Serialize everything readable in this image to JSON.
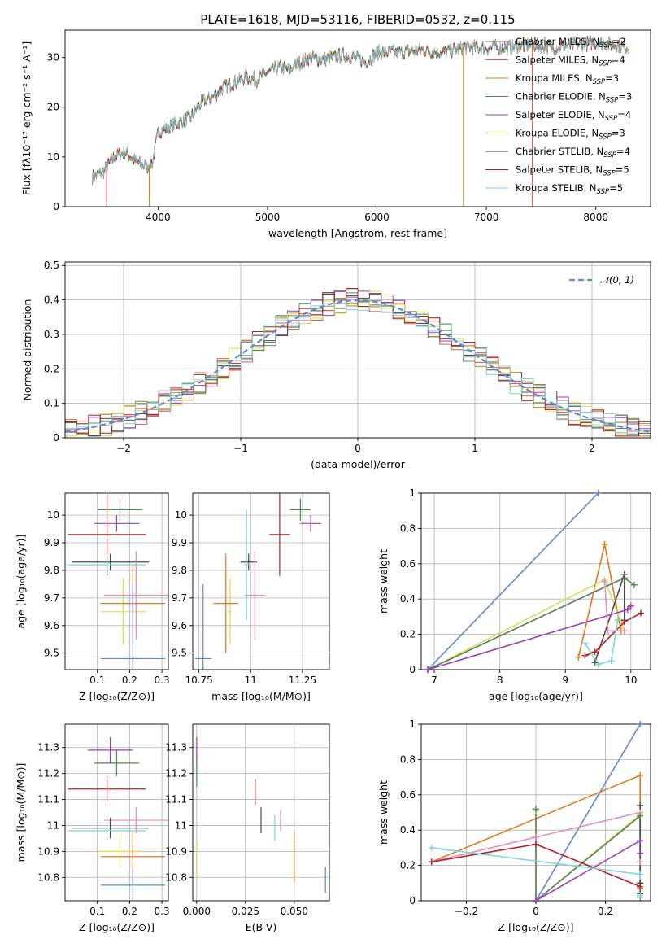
{
  "figure_title": "PLATE=1618, MJD=53116, FIBERID=0532, z=0.115",
  "colors": {
    "Chabrier MILES": "#7f7f7f",
    "Salpeter MILES": "#e45a4a",
    "Kroupa MILES": "#c28a1e",
    "Chabrier ELODIE": "#4e8a55",
    "Salpeter ELODIE": "#9b3fb5",
    "Kroupa ELODIE": "#d8e04a",
    "Chabrier STELIB": "#4a4a4a",
    "Salpeter STELIB": "#b0242a",
    "Kroupa STELIB": "#7fd6d8",
    "blue": "#5f88d0",
    "orange": "#e07a20",
    "pink": "#e58cc0",
    "lightgreen": "#c6e85a",
    "darkgreen": "#5f7a60"
  },
  "chart_data": [
    {
      "type": "line",
      "name": "spectrum",
      "xlabel": "wavelength [Angstrom, rest frame]",
      "ylabel": "Flux [fλ10⁻¹⁷ erg cm⁻² s⁻¹ A⁻¹]",
      "xlim": [
        3150,
        8500
      ],
      "ylim": [
        0,
        35.5
      ],
      "xticks": [
        4000,
        5000,
        6000,
        7000,
        8000
      ],
      "yticks": [
        0,
        10,
        20,
        30
      ],
      "grid": false,
      "legend_position": "right",
      "legend": [
        {
          "label": "Chabrier MILES, N",
          "sub": "SSP",
          "eq": "=2"
        },
        {
          "label": "Salpeter MILES, N",
          "sub": "SSP",
          "eq": "=4"
        },
        {
          "label": "Kroupa MILES, N",
          "sub": "SSP",
          "eq": "=3"
        },
        {
          "label": "Chabrier ELODIE, N",
          "sub": "SSP",
          "eq": "=3"
        },
        {
          "label": "Salpeter ELODIE, N",
          "sub": "SSP",
          "eq": "=4"
        },
        {
          "label": "Kroupa ELODIE, N",
          "sub": "SSP",
          "eq": "=3"
        },
        {
          "label": "Chabrier STELIB, N",
          "sub": "SSP",
          "eq": "=4"
        },
        {
          "label": "Salpeter STELIB, N",
          "sub": "SSP",
          "eq": "=5"
        },
        {
          "label": "Kroupa STELIB, N",
          "sub": "SSP",
          "eq": "=5"
        }
      ],
      "series_shape": {
        "x": [
          3400,
          3500,
          3600,
          3700,
          3800,
          3900,
          3950,
          4000,
          4100,
          4200,
          4300,
          4400,
          4500,
          4600,
          4700,
          4800,
          4900,
          5000,
          5100,
          5200,
          5300,
          5400,
          5500,
          5600,
          5700,
          5800,
          5900,
          6000,
          6200,
          6400,
          6600,
          6800,
          7000,
          7200,
          7400,
          7600,
          7800,
          8000,
          8200,
          8300
        ],
        "y": [
          6,
          7,
          10,
          11,
          9,
          8,
          9,
          15,
          16,
          17,
          18,
          21,
          22,
          24,
          25,
          26,
          25.5,
          27,
          28,
          27.5,
          29,
          30,
          29.5,
          30,
          30.5,
          30,
          29,
          31,
          31,
          31.5,
          31,
          32,
          32,
          32,
          32.5,
          32,
          32.5,
          33,
          32.5,
          32
        ]
      },
      "dropouts": [
        {
          "x": 3530,
          "y": 0,
          "series": "Salpeter MILES"
        },
        {
          "x": 3920,
          "y": 0,
          "series": "Kroupa MILES"
        },
        {
          "x": 6790,
          "y": 0,
          "series": "Kroupa MILES"
        },
        {
          "x": 7420,
          "y": 0,
          "series": "Salpeter MILES"
        }
      ]
    },
    {
      "type": "line",
      "name": "residual histogram",
      "xlabel": "(data-model)/error",
      "ylabel": "Normed distribution",
      "xlim": [
        -2.5,
        2.5
      ],
      "ylim": [
        0,
        0.51
      ],
      "xticks": [
        -2,
        -1,
        0,
        1,
        2
      ],
      "yticks": [
        0.0,
        0.1,
        0.2,
        0.3,
        0.4,
        0.5
      ],
      "grid": true,
      "legend": [
        {
          "label": "𝒩(0, 1)"
        }
      ],
      "bins": [
        -2.5,
        -2.4,
        -2.3,
        -2.2,
        -2.1,
        -2.0,
        -1.9,
        -1.8,
        -1.7,
        -1.6,
        -1.5,
        -1.4,
        -1.3,
        -1.2,
        -1.1,
        -1.0,
        -0.9,
        -0.8,
        -0.7,
        -0.6,
        -0.5,
        -0.4,
        -0.3,
        -0.2,
        -0.1,
        0.0,
        0.1,
        0.2,
        0.3,
        0.4,
        0.5,
        0.6,
        0.7,
        0.8,
        0.9,
        1.0,
        1.1,
        1.2,
        1.3,
        1.4,
        1.5,
        1.6,
        1.7,
        1.8,
        1.9,
        2.0,
        2.1,
        2.2,
        2.3,
        2.4
      ],
      "gaussian": {
        "mu": 0,
        "sigma": 1
      }
    },
    {
      "type": "scatter",
      "name": "age vs Z",
      "xlabel": "Z [log₁₀(Z/Z⊙)]",
      "ylabel": "age  [log₁₀(age/yr)]",
      "xlim": [
        0.0,
        0.32
      ],
      "ylim": [
        9.44,
        10.08
      ],
      "xticks": [
        0.1,
        0.2,
        0.3
      ],
      "yticks": [
        9.5,
        9.6,
        9.7,
        9.8,
        9.9,
        10.0
      ],
      "grid": true,
      "points": [
        {
          "series": "Chabrier ELODIE",
          "x": 0.17,
          "y": 10.02,
          "xerr": 0.07,
          "yerr": 0.04
        },
        {
          "series": "Salpeter ELODIE",
          "x": 0.16,
          "y": 9.97,
          "xerr": 0.07,
          "yerr": 0.03
        },
        {
          "series": "Salpeter STELIB",
          "x": 0.13,
          "y": 9.93,
          "xerr": 0.12,
          "yerr": 0.15
        },
        {
          "series": "Chabrier STELIB",
          "x": 0.14,
          "y": 9.83,
          "xerr": 0.12,
          "yerr": 0.03
        },
        {
          "series": "Kroupa STELIB",
          "x": 0.13,
          "y": 9.82,
          "xerr": 0.12,
          "yerr": 0.03
        },
        {
          "series": "Kroupa ELODIE",
          "x": 0.18,
          "y": 9.65,
          "xerr": 0.07,
          "yerr": 0.12
        },
        {
          "series": "Pink",
          "x": 0.22,
          "y": 9.71,
          "xerr": 0.1,
          "yerr": 0.16
        },
        {
          "series": "Orange",
          "x": 0.21,
          "y": 9.68,
          "xerr": 0.1,
          "yerr": 0.13
        },
        {
          "series": "Blue",
          "x": 0.21,
          "y": 9.48,
          "xerr": 0.1,
          "yerr": 0.27
        }
      ]
    },
    {
      "type": "scatter",
      "name": "age vs mass",
      "xlabel": "mass [log₁₀(M/M⊙)]",
      "xlim": [
        10.72,
        11.38
      ],
      "ylim": [
        9.44,
        10.08
      ],
      "xticks": [
        10.75,
        11.0,
        11.25
      ],
      "yticks": [
        9.5,
        9.6,
        9.7,
        9.8,
        9.9,
        10.0
      ],
      "grid": true,
      "points": [
        {
          "series": "Chabrier ELODIE",
          "x": 11.24,
          "y": 10.02,
          "xerr": 0.05,
          "yerr": 0.04
        },
        {
          "series": "Salpeter ELODIE",
          "x": 11.29,
          "y": 9.97,
          "xerr": 0.05,
          "yerr": 0.03
        },
        {
          "series": "Salpeter STELIB",
          "x": 11.14,
          "y": 9.93,
          "xerr": 0.05,
          "yerr": 0.15
        },
        {
          "series": "Chabrier STELIB",
          "x": 10.99,
          "y": 9.83,
          "xerr": 0.04,
          "yerr": 0.03
        },
        {
          "series": "Kroupa STELIB",
          "x": 10.98,
          "y": 9.82,
          "xerr": 0.01,
          "yerr": 0.2
        },
        {
          "series": "Kroupa ELODIE",
          "x": 10.9,
          "y": 9.65,
          "xerr": 0.01,
          "yerr": 0.12
        },
        {
          "series": "Pink",
          "x": 11.02,
          "y": 9.71,
          "xerr": 0.05,
          "yerr": 0.16
        },
        {
          "series": "Orange",
          "x": 10.88,
          "y": 9.68,
          "xerr": 0.06,
          "yerr": 0.18
        },
        {
          "series": "Blue",
          "x": 10.77,
          "y": 9.48,
          "xerr": 0.04,
          "yerr": 0.27
        }
      ]
    },
    {
      "type": "line",
      "name": "mass weight vs age",
      "xlabel": "age  [log₁₀(age/yr)]",
      "ylabel": "mass weight",
      "xlim": [
        6.8,
        10.3
      ],
      "ylim": [
        0,
        1.0
      ],
      "xticks": [
        7,
        8,
        9,
        10
      ],
      "yticks": [
        0.0,
        0.2,
        0.4,
        0.6,
        0.8,
        1.0
      ],
      "grid": true,
      "series": [
        {
          "color": "blue",
          "x": [
            6.9,
            9.5
          ],
          "y": [
            0.0,
            1.0
          ]
        },
        {
          "color": "orange",
          "x": [
            9.2,
            9.6,
            9.85
          ],
          "y": [
            0.07,
            0.71,
            0.22
          ]
        },
        {
          "color": "lightgreen",
          "x": [
            6.9,
            9.6,
            9.9
          ],
          "y": [
            0.0,
            0.51,
            0.22
          ]
        },
        {
          "color": "darkgreen",
          "x": [
            6.9,
            9.9,
            10.05
          ],
          "y": [
            0.0,
            0.52,
            0.48
          ]
        },
        {
          "color": "Chabrier STELIB",
          "x": [
            9.45,
            9.9,
            9.9
          ],
          "y": [
            0.04,
            0.54,
            0.28
          ]
        },
        {
          "color": "Salpeter ELODIE",
          "x": [
            6.9,
            9.95,
            10.0
          ],
          "y": [
            0.0,
            0.34,
            0.36
          ]
        },
        {
          "color": "Salpeter STELIB",
          "x": [
            9.3,
            9.45,
            9.9,
            10.15
          ],
          "y": [
            0.08,
            0.1,
            0.27,
            0.32
          ]
        },
        {
          "color": "pink",
          "x": [
            9.6,
            9.65,
            9.9
          ],
          "y": [
            0.5,
            0.22,
            0.22
          ]
        },
        {
          "color": "Kroupa STELIB",
          "x": [
            9.3,
            9.5,
            9.7,
            9.8
          ],
          "y": [
            0.15,
            0.03,
            0.05,
            0.28
          ]
        }
      ]
    },
    {
      "type": "scatter",
      "name": "mass vs Z",
      "xlabel": "Z [log₁₀(Z/Z⊙)]",
      "ylabel": "mass [log₁₀(M/M⊙)]",
      "xlim": [
        0.0,
        0.32
      ],
      "ylim": [
        10.71,
        11.39
      ],
      "xticks": [
        0.1,
        0.2,
        0.3
      ],
      "yticks": [
        10.8,
        10.9,
        11.0,
        11.1,
        11.2,
        11.3
      ],
      "grid": true,
      "points": [
        {
          "series": "Salpeter ELODIE",
          "x": 0.14,
          "y": 11.29,
          "xerr": 0.07,
          "yerr": 0.05
        },
        {
          "series": "Chabrier ELODIE",
          "x": 0.16,
          "y": 11.24,
          "xerr": 0.07,
          "yerr": 0.05
        },
        {
          "series": "Salpeter STELIB",
          "x": 0.13,
          "y": 11.14,
          "xerr": 0.12,
          "yerr": 0.05
        },
        {
          "series": "Pink",
          "x": 0.22,
          "y": 11.02,
          "xerr": 0.1,
          "yerr": 0.05
        },
        {
          "series": "Chabrier STELIB",
          "x": 0.14,
          "y": 10.99,
          "xerr": 0.12,
          "yerr": 0.04
        },
        {
          "series": "Kroupa STELIB",
          "x": 0.13,
          "y": 10.98,
          "xerr": 0.12,
          "yerr": 0.03
        },
        {
          "series": "Kroupa ELODIE",
          "x": 0.17,
          "y": 10.9,
          "xerr": 0.07,
          "yerr": 0.06
        },
        {
          "series": "Orange",
          "x": 0.21,
          "y": 10.88,
          "xerr": 0.1,
          "yerr": 0.1
        },
        {
          "series": "Blue",
          "x": 0.21,
          "y": 10.77,
          "xerr": 0.1,
          "yerr": 0.06
        }
      ]
    },
    {
      "type": "scatter",
      "name": "mass vs E(B-V)",
      "xlabel": "E(B-V)",
      "xlim": [
        -0.002,
        0.068
      ],
      "ylim": [
        10.71,
        11.39
      ],
      "xticks": [
        0.0,
        0.025,
        0.05
      ],
      "xticklabels": [
        "0.000",
        "0.025",
        "0.050"
      ],
      "yticks": [
        10.8,
        10.9,
        11.0,
        11.1,
        11.2,
        11.3
      ],
      "grid": true,
      "points": [
        {
          "series": "Salpeter ELODIE",
          "x": 0.0,
          "y": 11.29,
          "yerr": 0.05
        },
        {
          "series": "Chabrier ELODIE",
          "x": 0.0,
          "y": 11.2,
          "yerr": 0.05
        },
        {
          "series": "Salpeter STELIB",
          "x": 0.03,
          "y": 11.13,
          "yerr": 0.05
        },
        {
          "series": "Chabrier STELIB",
          "x": 0.033,
          "y": 11.02,
          "yerr": 0.05
        },
        {
          "series": "Pink",
          "x": 0.043,
          "y": 11.02,
          "yerr": 0.04
        },
        {
          "series": "Kroupa STELIB",
          "x": 0.04,
          "y": 10.99,
          "yerr": 0.05
        },
        {
          "series": "Orange",
          "x": 0.05,
          "y": 10.88,
          "yerr": 0.1
        },
        {
          "series": "Kroupa ELODIE",
          "x": 0.0,
          "y": 10.87,
          "yerr": 0.07
        },
        {
          "series": "Blue",
          "x": 0.066,
          "y": 10.79,
          "yerr": 0.05
        }
      ]
    },
    {
      "type": "line",
      "name": "mass weight vs Z",
      "xlabel": "Z [log₁₀(Z/Z⊙)]",
      "ylabel": "mass weight",
      "xlim": [
        -0.33,
        0.33
      ],
      "ylim": [
        0,
        1.0
      ],
      "xticks": [
        -0.2,
        0.0,
        0.2
      ],
      "yticks": [
        0.0,
        0.2,
        0.4,
        0.6,
        0.8,
        1.0
      ],
      "grid": true,
      "series": [
        {
          "color": "blue",
          "x": [
            0.0,
            0.3
          ],
          "y": [
            0.0,
            1.0
          ]
        },
        {
          "color": "orange",
          "x": [
            -0.3,
            0.3,
            0.3
          ],
          "y": [
            0.22,
            0.71,
            0.07
          ]
        },
        {
          "color": "pink",
          "x": [
            -0.3,
            0.0,
            0.3,
            0.3
          ],
          "y": [
            0.22,
            0.36,
            0.5,
            0.22
          ]
        },
        {
          "color": "lightgreen",
          "x": [
            0.0,
            0.0,
            0.3
          ],
          "y": [
            0.51,
            0.0,
            0.49
          ]
        },
        {
          "color": "darkgreen",
          "x": [
            0.0,
            0.0,
            0.3,
            0.3
          ],
          "y": [
            0.52,
            0.0,
            0.48,
            0.02
          ]
        },
        {
          "color": "Salpeter ELODIE",
          "x": [
            0.0,
            0.3,
            0.3
          ],
          "y": [
            0.0,
            0.34,
            0.27
          ]
        },
        {
          "color": "Salpeter STELIB",
          "x": [
            -0.3,
            0.0,
            0.3,
            0.3
          ],
          "y": [
            0.22,
            0.32,
            0.08,
            0.1
          ]
        },
        {
          "color": "Chabrier STELIB",
          "x": [
            0.3,
            0.3,
            0.3
          ],
          "y": [
            0.54,
            0.04,
            0.1
          ]
        },
        {
          "color": "Kroupa STELIB",
          "x": [
            -0.3,
            0.3,
            0.3
          ],
          "y": [
            0.3,
            0.15,
            0.03
          ]
        }
      ]
    }
  ]
}
